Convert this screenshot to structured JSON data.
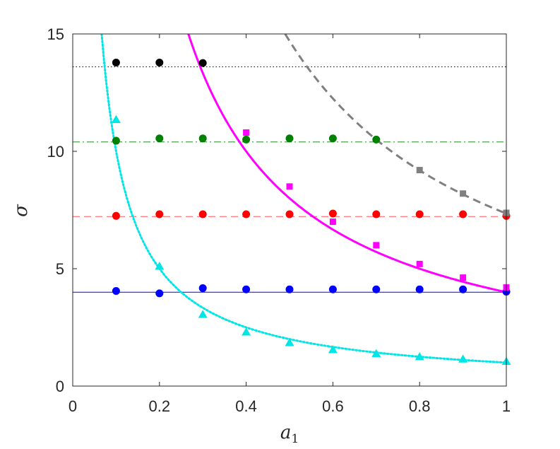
{
  "chart_data": {
    "type": "scatter",
    "xlabel": "a",
    "xlabel_subscript": "1",
    "ylabel": "σ",
    "xlim": [
      0,
      1
    ],
    "ylim": [
      0,
      15
    ],
    "x_ticks": [
      0,
      0.2,
      0.4,
      0.6,
      0.8,
      1
    ],
    "x_tick_labels": [
      "0",
      "0.2",
      "0.4",
      "0.6",
      "0.8",
      "1"
    ],
    "y_ticks": [
      0,
      5,
      10,
      15
    ],
    "y_tick_labels": [
      "0",
      "5",
      "10",
      "15"
    ],
    "grid": false,
    "reference_lines": [
      {
        "y": 13.6,
        "color": "#000000",
        "style": "dotted"
      },
      {
        "y": 10.4,
        "color": "#228b22",
        "style": "dashdot"
      },
      {
        "y": 7.22,
        "color": "#ff5555",
        "style": "dashed"
      },
      {
        "y": 4.0,
        "color": "#0000ee",
        "style": "solid"
      }
    ],
    "curves": [
      {
        "color": "#00e5e5",
        "style": "dotted",
        "x_start": 0.066,
        "x_end": 1.0,
        "formula": "1/x"
      },
      {
        "color": "#ff00ff",
        "style": "solid",
        "x_start": 0.266,
        "x_end": 1.0,
        "formula": "4/x"
      },
      {
        "color": "#808080",
        "style": "dashed",
        "x_start": 0.49,
        "x_end": 1.0,
        "formula": "7.35/x"
      }
    ],
    "series": [
      {
        "color": "#000000",
        "marker": "circle",
        "x": [
          0.1,
          0.2,
          0.3
        ],
        "y": [
          13.78,
          13.78,
          13.76
        ]
      },
      {
        "color": "#008000",
        "marker": "circle",
        "x": [
          0.1,
          0.2,
          0.3,
          0.4,
          0.5,
          0.6,
          0.7
        ],
        "y": [
          10.45,
          10.55,
          10.55,
          10.5,
          10.55,
          10.55,
          10.5
        ]
      },
      {
        "color": "#ff0000",
        "marker": "circle",
        "x": [
          0.1,
          0.2,
          0.3,
          0.4,
          0.5,
          0.6,
          0.7,
          0.8,
          0.9,
          1.0
        ],
        "y": [
          7.25,
          7.32,
          7.32,
          7.32,
          7.32,
          7.35,
          7.32,
          7.32,
          7.32,
          7.25
        ]
      },
      {
        "color": "#0000ff",
        "marker": "circle",
        "x": [
          0.1,
          0.2,
          0.3,
          0.4,
          0.5,
          0.6,
          0.7,
          0.8,
          0.9,
          1.0
        ],
        "y": [
          4.05,
          3.95,
          4.17,
          4.12,
          4.12,
          4.12,
          4.12,
          4.12,
          4.12,
          4.02
        ]
      },
      {
        "color": "#ff00ff",
        "marker": "square",
        "x": [
          0.4,
          0.5,
          0.6,
          0.7,
          0.8,
          0.9,
          1.0
        ],
        "y": [
          10.8,
          8.5,
          7.0,
          6.0,
          5.2,
          4.62,
          4.2
        ]
      },
      {
        "color": "#808080",
        "marker": "square",
        "x": [
          0.8,
          0.9,
          1.0
        ],
        "y": [
          9.2,
          8.2,
          7.38
        ]
      },
      {
        "color": "#00e5e5",
        "marker": "triangle",
        "x": [
          0.1,
          0.2,
          0.3,
          0.4,
          0.5,
          0.6,
          0.7,
          0.8,
          0.9,
          1.0
        ],
        "y": [
          11.35,
          5.1,
          3.05,
          2.3,
          1.85,
          1.55,
          1.38,
          1.25,
          1.15,
          1.05
        ]
      }
    ]
  }
}
